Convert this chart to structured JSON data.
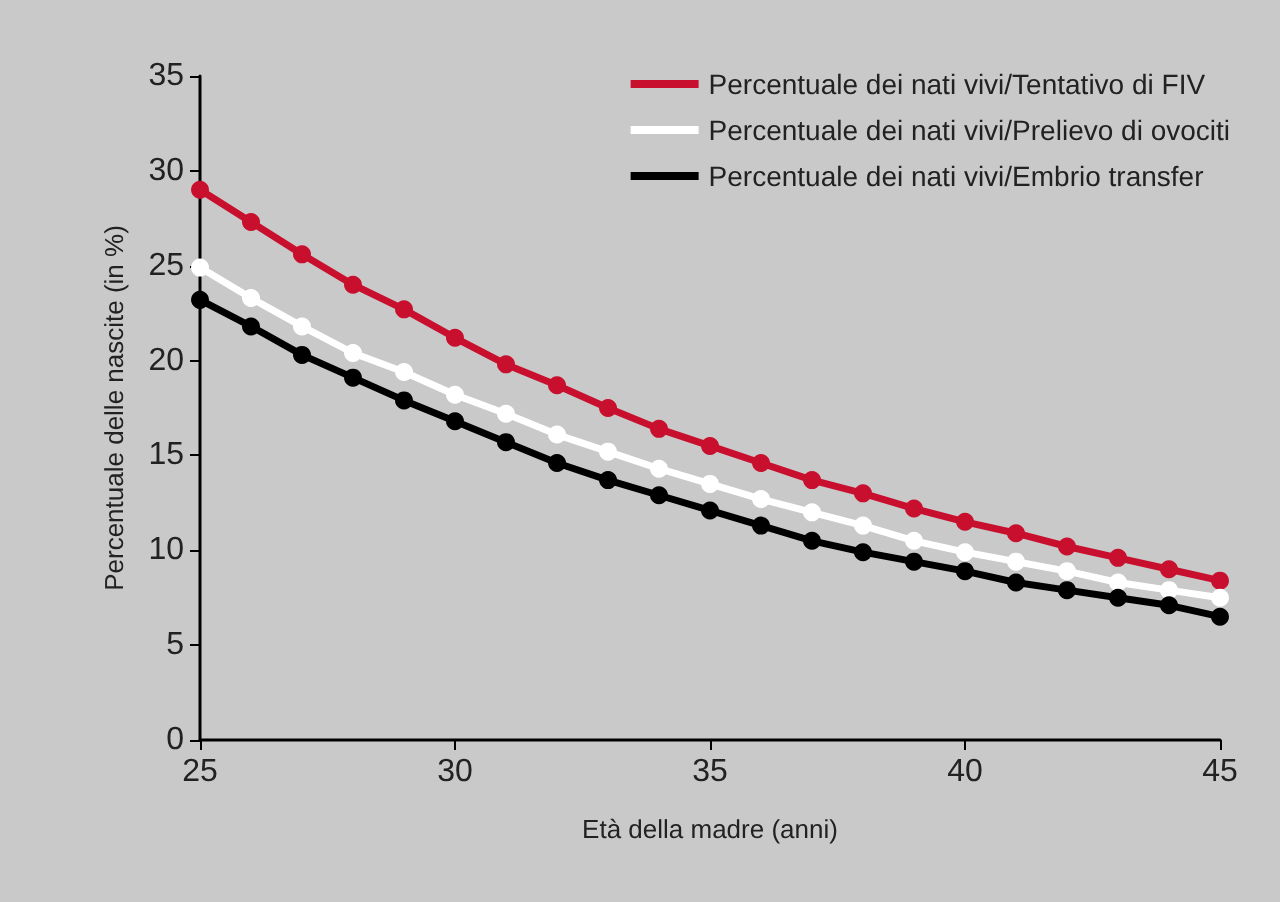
{
  "chart_data": {
    "type": "line",
    "xlabel": "Età della madre (anni)",
    "ylabel": "Percentuale delle nascite (in %)",
    "x": [
      25,
      26,
      27,
      28,
      29,
      30,
      31,
      32,
      33,
      34,
      35,
      36,
      37,
      38,
      39,
      40,
      41,
      42,
      43,
      44,
      45
    ],
    "series": [
      {
        "name": "Percentuale dei nati vivi/Tentativo di FIV",
        "color": "#c8102e",
        "values": [
          29.0,
          27.3,
          25.6,
          24.0,
          22.7,
          21.2,
          19.8,
          18.7,
          17.5,
          16.4,
          15.5,
          14.6,
          13.7,
          13.0,
          12.2,
          11.5,
          10.9,
          10.2,
          9.6,
          9.0,
          8.4
        ]
      },
      {
        "name": "Percentuale dei nati vivi/Prelievo di ovociti",
        "color": "#ffffff",
        "values": [
          24.9,
          23.3,
          21.8,
          20.4,
          19.4,
          18.2,
          17.2,
          16.1,
          15.2,
          14.3,
          13.5,
          12.7,
          12.0,
          11.3,
          10.5,
          9.9,
          9.4,
          8.9,
          8.3,
          7.9,
          7.5
        ]
      },
      {
        "name": "Percentuale dei nati vivi/Embrio transfer",
        "color": "#000000",
        "values": [
          23.2,
          21.8,
          20.3,
          19.1,
          17.9,
          16.8,
          15.7,
          14.6,
          13.7,
          12.9,
          12.1,
          11.3,
          10.5,
          9.9,
          9.4,
          8.9,
          8.3,
          7.9,
          7.5,
          7.1,
          6.5
        ]
      }
    ],
    "xlim": [
      25,
      45
    ],
    "xticks": [
      25,
      30,
      35,
      40,
      45
    ],
    "ylim": [
      0,
      35
    ],
    "yticks": [
      0,
      5,
      10,
      15,
      20,
      25,
      30,
      35
    ],
    "grid": false,
    "legend": "top right",
    "marker": "circle",
    "line_style": "solid"
  }
}
